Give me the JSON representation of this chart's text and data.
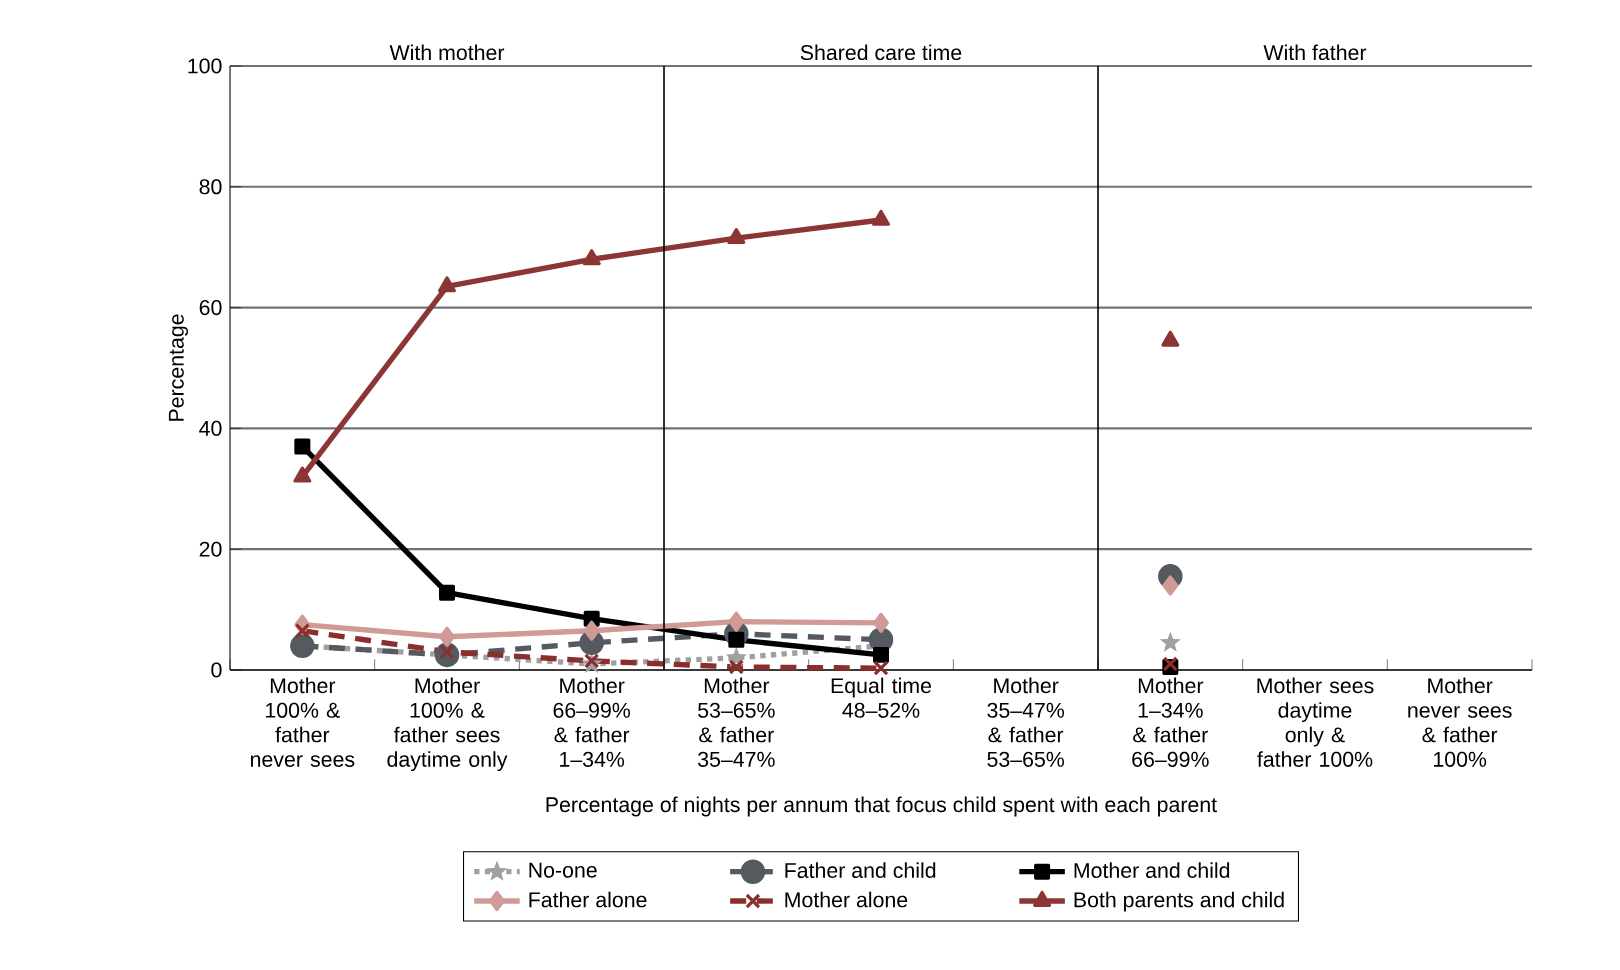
{
  "chart_data": {
    "type": "line",
    "categories": [
      "Mother 100% & father never sees",
      "Mother 100% & father sees daytime only",
      "Mother 66–99% & father 1–34%",
      "Mother 53–65% & father 35–47%",
      "Equal time 48–52%",
      "Mother 35–47% & father 53–65%",
      "Mother 1–34% & father 66–99%",
      "Mother sees daytime only & father 100%",
      "Mother never sees & father 100%"
    ],
    "xlabel": "Percentage of nights per annum that focus child spent with each parent",
    "ylabel": "Percentage",
    "ylim": [
      0,
      100
    ],
    "yticks": [
      0,
      20,
      40,
      60,
      80,
      100
    ],
    "grid": "y",
    "legend": "bottom",
    "annotations": [
      "With mother",
      "Shared care time",
      "With father"
    ],
    "series": [
      {
        "name": "No-one",
        "color": "#a0a0a0",
        "marker": "star",
        "line_style": "dotted",
        "values": [
          4,
          2.5,
          1,
          2,
          4,
          null,
          4.5,
          null,
          null
        ]
      },
      {
        "name": "Father and child",
        "color": "#555a60",
        "marker": "circle",
        "line_style": "dashed",
        "values": [
          4,
          2.5,
          4.5,
          6,
          5,
          null,
          15.5,
          null,
          null
        ]
      },
      {
        "name": "Mother and child",
        "color": "#000000",
        "marker": "square",
        "line_style": "solid",
        "values": [
          37,
          12.8,
          8.5,
          5,
          2.5,
          null,
          0.5,
          null,
          null
        ]
      },
      {
        "name": "Father alone",
        "color": "#d09a96",
        "marker": "diamond",
        "line_style": "solid",
        "values": [
          7.5,
          5.5,
          6.5,
          8,
          7.8,
          null,
          14,
          null,
          null
        ]
      },
      {
        "name": "Mother alone",
        "color": "#8b2e2e",
        "marker": "cross",
        "line_style": "dashed",
        "values": [
          6.5,
          3,
          1.5,
          0.5,
          0.3,
          null,
          1,
          null,
          null
        ]
      },
      {
        "name": "Both parents and child",
        "color": "#8b3535",
        "marker": "triangle",
        "line_style": "solid",
        "values": [
          32,
          63.5,
          68,
          71.5,
          74.5,
          null,
          54.5,
          null,
          null
        ]
      }
    ]
  }
}
